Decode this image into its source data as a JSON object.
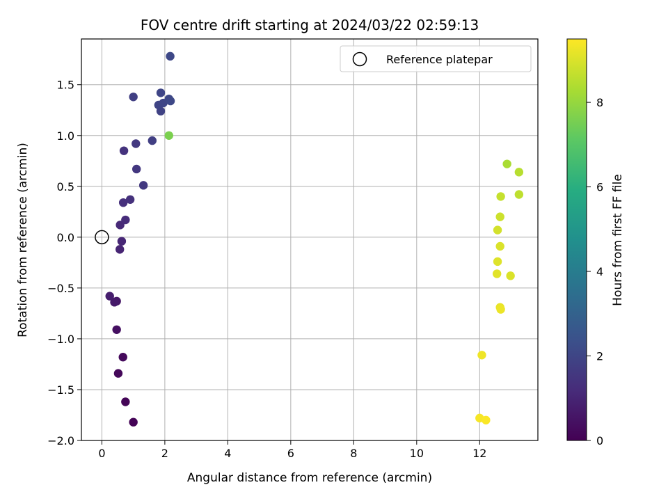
{
  "chart_data": {
    "type": "scatter",
    "title": "FOV centre drift starting at 2024/03/22 02:59:13",
    "xlabel": "Angular distance from reference (arcmin)",
    "ylabel": "Rotation from reference (arcmin)",
    "xlim": [
      -0.65,
      13.85
    ],
    "ylim": [
      -2.0,
      1.95
    ],
    "xticks": [
      0,
      2,
      4,
      6,
      8,
      10,
      12
    ],
    "yticks": [
      -2.0,
      -1.5,
      -1.0,
      -0.5,
      0.0,
      0.5,
      1.0,
      1.5
    ],
    "xtick_labels": [
      "0",
      "2",
      "4",
      "6",
      "8",
      "10",
      "12"
    ],
    "ytick_labels": [
      "−2.0",
      "−1.5",
      "−1.0",
      "−0.5",
      "0.0",
      "0.5",
      "1.0",
      "1.5"
    ],
    "grid": true,
    "colormap": "viridis",
    "colorbar": {
      "label": "Hours from first FF file",
      "range": [
        0,
        9.5
      ],
      "ticks": [
        0,
        2,
        4,
        6,
        8
      ],
      "tick_labels": [
        "0",
        "2",
        "4",
        "6",
        "8"
      ]
    },
    "legend": {
      "position": "top-right",
      "entries": [
        {
          "label": "Reference platepar",
          "marker": "hollow-circle"
        }
      ]
    },
    "reference_point": {
      "x": 0.0,
      "y": 0.0
    },
    "points": [
      {
        "x": 1.0,
        "y": -1.82,
        "c": 0.05
      },
      {
        "x": 0.75,
        "y": -1.62,
        "c": 0.1
      },
      {
        "x": 0.52,
        "y": -1.34,
        "c": 0.2
      },
      {
        "x": 0.67,
        "y": -1.18,
        "c": 0.25
      },
      {
        "x": 0.47,
        "y": -0.91,
        "c": 0.4
      },
      {
        "x": 0.47,
        "y": -0.63,
        "c": 0.6
      },
      {
        "x": 0.4,
        "y": -0.64,
        "c": 0.7
      },
      {
        "x": 0.25,
        "y": -0.58,
        "c": 0.8
      },
      {
        "x": 0.57,
        "y": -0.12,
        "c": 1.0
      },
      {
        "x": 0.63,
        "y": -0.04,
        "c": 1.05
      },
      {
        "x": 0.58,
        "y": 0.12,
        "c": 1.1
      },
      {
        "x": 0.75,
        "y": 0.17,
        "c": 1.2
      },
      {
        "x": 0.68,
        "y": 0.34,
        "c": 1.3
      },
      {
        "x": 0.9,
        "y": 0.37,
        "c": 1.35
      },
      {
        "x": 1.32,
        "y": 0.51,
        "c": 1.6
      },
      {
        "x": 1.1,
        "y": 0.67,
        "c": 1.55
      },
      {
        "x": 0.7,
        "y": 0.85,
        "c": 1.4
      },
      {
        "x": 1.08,
        "y": 0.92,
        "c": 1.6
      },
      {
        "x": 1.6,
        "y": 0.95,
        "c": 1.8
      },
      {
        "x": 1.87,
        "y": 1.24,
        "c": 1.9
      },
      {
        "x": 1.8,
        "y": 1.3,
        "c": 1.95
      },
      {
        "x": 1.95,
        "y": 1.32,
        "c": 2.0
      },
      {
        "x": 2.13,
        "y": 1.36,
        "c": 2.05
      },
      {
        "x": 2.18,
        "y": 1.34,
        "c": 2.1
      },
      {
        "x": 1.87,
        "y": 1.42,
        "c": 2.0
      },
      {
        "x": 1.0,
        "y": 1.38,
        "c": 1.8
      },
      {
        "x": 2.17,
        "y": 1.78,
        "c": 2.1
      },
      {
        "x": 2.13,
        "y": 1.0,
        "c": 7.6
      },
      {
        "x": 12.87,
        "y": 0.72,
        "c": 8.3
      },
      {
        "x": 13.25,
        "y": 0.64,
        "c": 8.5
      },
      {
        "x": 13.25,
        "y": 0.42,
        "c": 8.6
      },
      {
        "x": 12.67,
        "y": 0.4,
        "c": 8.7
      },
      {
        "x": 12.65,
        "y": 0.2,
        "c": 8.8
      },
      {
        "x": 12.57,
        "y": 0.07,
        "c": 8.9
      },
      {
        "x": 12.65,
        "y": -0.09,
        "c": 9.0
      },
      {
        "x": 12.57,
        "y": -0.24,
        "c": 9.05
      },
      {
        "x": 12.55,
        "y": -0.36,
        "c": 9.1
      },
      {
        "x": 12.98,
        "y": -0.38,
        "c": 9.0
      },
      {
        "x": 12.65,
        "y": -0.69,
        "c": 9.2
      },
      {
        "x": 12.67,
        "y": -0.71,
        "c": 9.25
      },
      {
        "x": 12.07,
        "y": -1.16,
        "c": 9.3
      },
      {
        "x": 12.0,
        "y": -1.78,
        "c": 9.4
      },
      {
        "x": 12.2,
        "y": -1.8,
        "c": 9.45
      }
    ]
  }
}
